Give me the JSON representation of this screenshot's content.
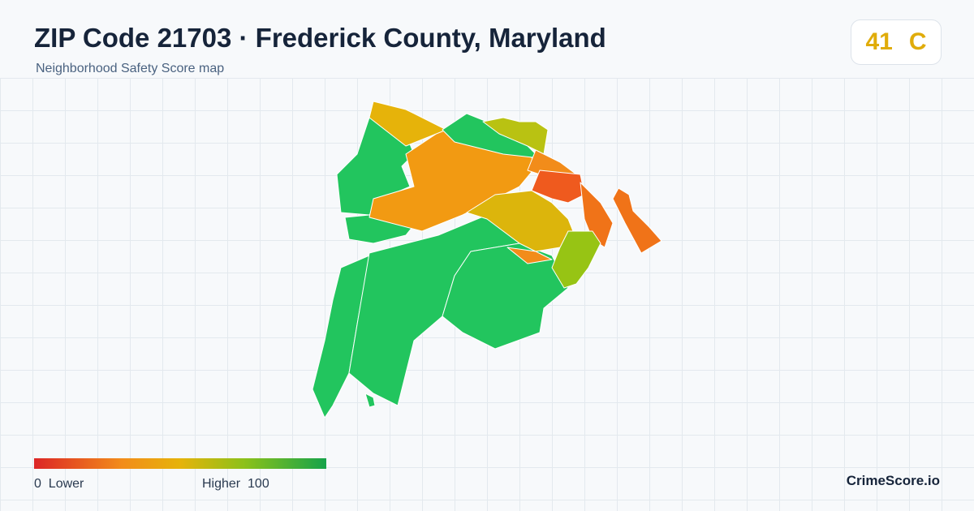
{
  "header": {
    "title": "ZIP Code 21703 · Frederick County, Maryland",
    "subtitle": "Neighborhood Safety Score map"
  },
  "score": {
    "value": 41,
    "grade": "C"
  },
  "legend": {
    "min": 0,
    "min_label": "Lower",
    "max_label": "Higher",
    "max": 100
  },
  "brand": "CrimeScore.io"
}
